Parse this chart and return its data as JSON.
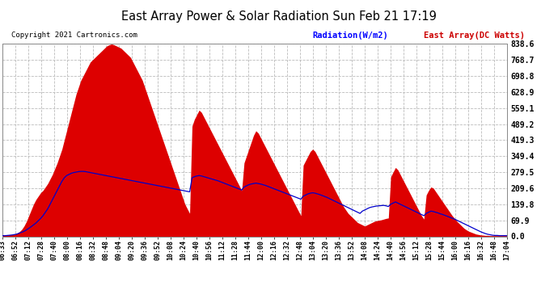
{
  "title": "East Array Power & Solar Radiation Sun Feb 21 17:19",
  "copyright": "Copyright 2021 Cartronics.com",
  "legend_radiation": "Radiation(W/m2)",
  "legend_east_array": "East Array(DC Watts)",
  "ylabel_right_values": [
    0.0,
    69.9,
    139.8,
    209.6,
    279.5,
    349.4,
    419.3,
    489.2,
    559.1,
    628.9,
    698.8,
    768.7,
    838.6
  ],
  "ymax": 838.6,
  "ymin": 0.0,
  "background_color": "#ffffff",
  "fill_color": "#dd0000",
  "radiation_color": "#0000cc",
  "grid_color": "#bbbbbb",
  "title_color": "#000000",
  "copyright_color": "#000000",
  "radiation_label_color": "#0000ff",
  "east_array_label_color": "#cc0000",
  "x_labels": [
    "06:33",
    "06:52",
    "07:12",
    "07:28",
    "07:40",
    "08:00",
    "08:16",
    "08:32",
    "08:48",
    "09:04",
    "09:20",
    "09:36",
    "09:52",
    "10:08",
    "10:24",
    "10:40",
    "10:56",
    "11:12",
    "11:28",
    "11:44",
    "12:00",
    "12:16",
    "12:32",
    "12:48",
    "13:04",
    "13:20",
    "13:36",
    "13:52",
    "14:08",
    "14:24",
    "14:40",
    "14:56",
    "15:12",
    "15:28",
    "15:44",
    "16:00",
    "16:16",
    "16:32",
    "16:48",
    "17:04"
  ],
  "east_array_data": [
    5,
    5,
    6,
    7,
    8,
    10,
    14,
    20,
    30,
    45,
    65,
    90,
    115,
    140,
    160,
    175,
    190,
    200,
    215,
    230,
    250,
    270,
    295,
    320,
    350,
    380,
    420,
    460,
    500,
    540,
    580,
    620,
    650,
    680,
    700,
    720,
    740,
    760,
    770,
    780,
    790,
    800,
    810,
    820,
    830,
    835,
    838,
    835,
    830,
    825,
    820,
    810,
    800,
    790,
    780,
    760,
    740,
    720,
    700,
    680,
    650,
    620,
    590,
    560,
    530,
    500,
    470,
    440,
    410,
    380,
    350,
    320,
    290,
    260,
    230,
    200,
    170,
    140,
    120,
    100,
    480,
    510,
    530,
    550,
    540,
    520,
    500,
    480,
    460,
    440,
    420,
    400,
    380,
    360,
    340,
    320,
    300,
    280,
    260,
    240,
    220,
    200,
    320,
    350,
    380,
    410,
    440,
    460,
    450,
    430,
    410,
    390,
    370,
    350,
    330,
    310,
    290,
    270,
    250,
    230,
    210,
    190,
    170,
    150,
    130,
    110,
    90,
    310,
    330,
    350,
    370,
    380,
    370,
    350,
    330,
    310,
    290,
    270,
    250,
    230,
    210,
    190,
    170,
    150,
    130,
    115,
    100,
    90,
    80,
    70,
    60,
    55,
    50,
    45,
    50,
    55,
    60,
    65,
    68,
    70,
    72,
    75,
    78,
    80,
    260,
    280,
    300,
    290,
    270,
    250,
    230,
    210,
    190,
    170,
    150,
    130,
    110,
    90,
    75,
    180,
    200,
    215,
    210,
    195,
    180,
    165,
    150,
    135,
    120,
    105,
    90,
    78,
    65,
    55,
    45,
    35,
    28,
    22,
    18,
    14,
    10,
    8,
    6,
    5,
    4,
    4,
    3,
    3,
    3,
    3,
    3,
    3,
    3,
    3
  ],
  "radiation_data": [
    3,
    3,
    4,
    5,
    6,
    8,
    10,
    14,
    18,
    22,
    28,
    35,
    42,
    50,
    58,
    68,
    78,
    90,
    105,
    120,
    140,
    160,
    180,
    200,
    220,
    240,
    255,
    265,
    270,
    275,
    278,
    280,
    282,
    283,
    283,
    282,
    280,
    278,
    276,
    274,
    272,
    270,
    268,
    266,
    264,
    262,
    260,
    258,
    256,
    254,
    252,
    250,
    248,
    246,
    244,
    242,
    240,
    238,
    236,
    234,
    232,
    230,
    228,
    226,
    224,
    222,
    220,
    218,
    216,
    214,
    212,
    210,
    208,
    206,
    204,
    202,
    200,
    198,
    196,
    194,
    255,
    260,
    263,
    265,
    263,
    260,
    257,
    254,
    251,
    248,
    245,
    242,
    238,
    234,
    230,
    226,
    222,
    218,
    214,
    210,
    206,
    202,
    215,
    220,
    225,
    228,
    230,
    232,
    230,
    228,
    225,
    222,
    218,
    214,
    210,
    206,
    202,
    198,
    194,
    190,
    186,
    182,
    178,
    174,
    170,
    166,
    162,
    175,
    180,
    185,
    188,
    190,
    188,
    185,
    182,
    178,
    174,
    170,
    165,
    160,
    155,
    150,
    145,
    140,
    135,
    130,
    125,
    120,
    115,
    110,
    105,
    100,
    110,
    115,
    120,
    125,
    128,
    130,
    132,
    133,
    134,
    135,
    133,
    130,
    140,
    145,
    150,
    145,
    140,
    135,
    130,
    125,
    120,
    115,
    110,
    105,
    100,
    95,
    90,
    100,
    105,
    110,
    108,
    105,
    102,
    98,
    95,
    91,
    87,
    83,
    79,
    75,
    70,
    65,
    60,
    55,
    50,
    45,
    40,
    35,
    30,
    25,
    20,
    16,
    12,
    9,
    7,
    5,
    4,
    4,
    3,
    3,
    3,
    3
  ]
}
